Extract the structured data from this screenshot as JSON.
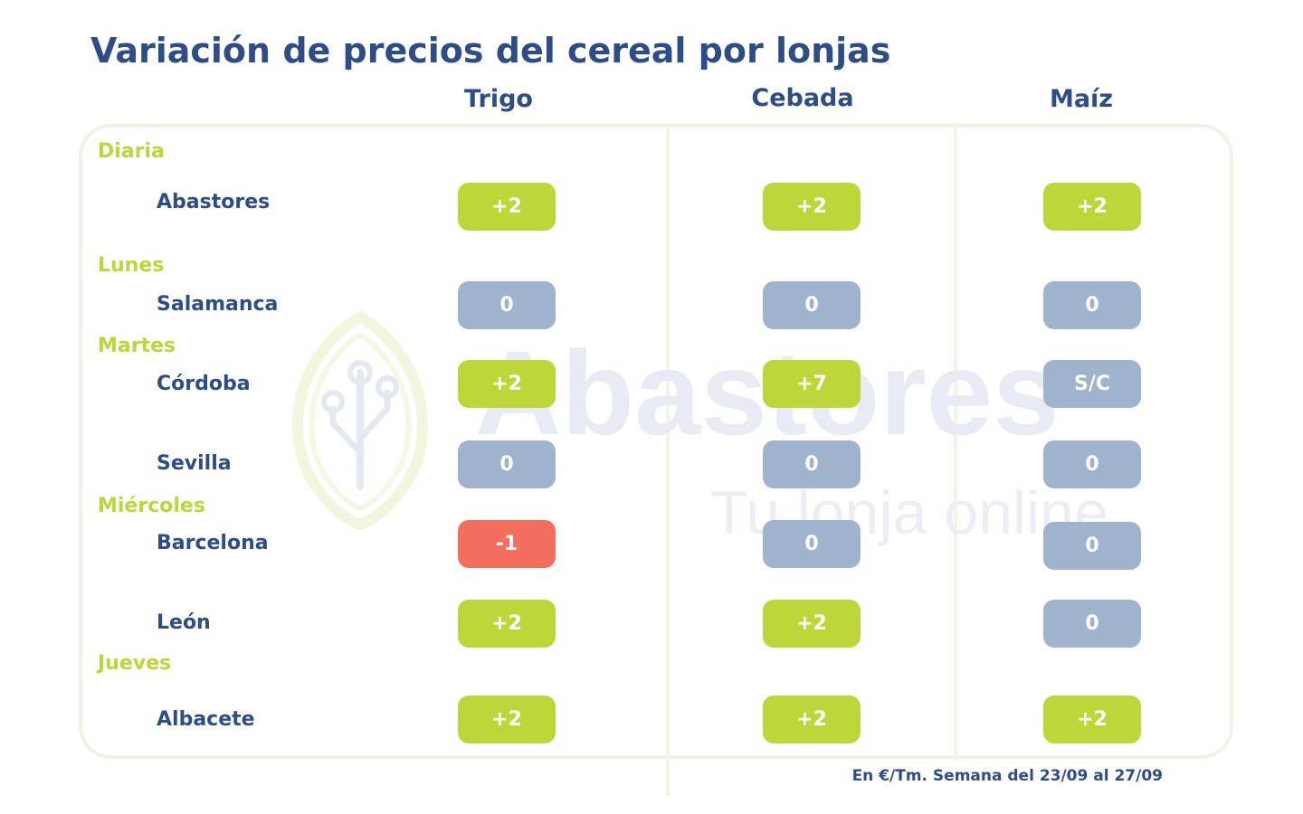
{
  "title": "Variación de precios del cereal por lonjas",
  "columns": [
    "Trigo",
    "Cebada",
    "Maíz"
  ],
  "colors": {
    "up": "#bed63a",
    "neutral": "#a0b3ce",
    "down": "#f36e5e",
    "title": "#2e4d86",
    "day": "#bcd63b"
  },
  "days": [
    "Diaria",
    "Lunes",
    "Martes",
    "Miércoles",
    "Jueves"
  ],
  "rows": [
    {
      "day": "Diaria",
      "market": "Abastores",
      "values": [
        "+2",
        "+2",
        "+2"
      ],
      "status": [
        "up",
        "up",
        "up"
      ]
    },
    {
      "day": "Lunes",
      "market": "Salamanca",
      "values": [
        "0",
        "0",
        "0"
      ],
      "status": [
        "neutral",
        "neutral",
        "neutral"
      ]
    },
    {
      "day": "Martes",
      "market": "Córdoba",
      "values": [
        "+2",
        "+7",
        "S/C"
      ],
      "status": [
        "up",
        "up",
        "neutral"
      ]
    },
    {
      "day": "Martes",
      "market": "Sevilla",
      "values": [
        "0",
        "0",
        "0"
      ],
      "status": [
        "neutral",
        "neutral",
        "neutral"
      ]
    },
    {
      "day": "Miércoles",
      "market": "Barcelona",
      "values": [
        "-1",
        "0",
        "0"
      ],
      "status": [
        "down",
        "neutral",
        "neutral"
      ]
    },
    {
      "day": "Miércoles",
      "market": "León",
      "values": [
        "+2",
        "+2",
        "0"
      ],
      "status": [
        "up",
        "up",
        "neutral"
      ]
    },
    {
      "day": "Jueves",
      "market": "Albacete",
      "values": [
        "+2",
        "+2",
        "+2"
      ],
      "status": [
        "up",
        "up",
        "up"
      ]
    }
  ],
  "watermark": {
    "brand": "Abastores",
    "tagline": "Tu lonja online",
    "icon": "leaf-circuit-icon"
  },
  "footer": "En €/Tm. Semana del 23/09 al 27/09"
}
